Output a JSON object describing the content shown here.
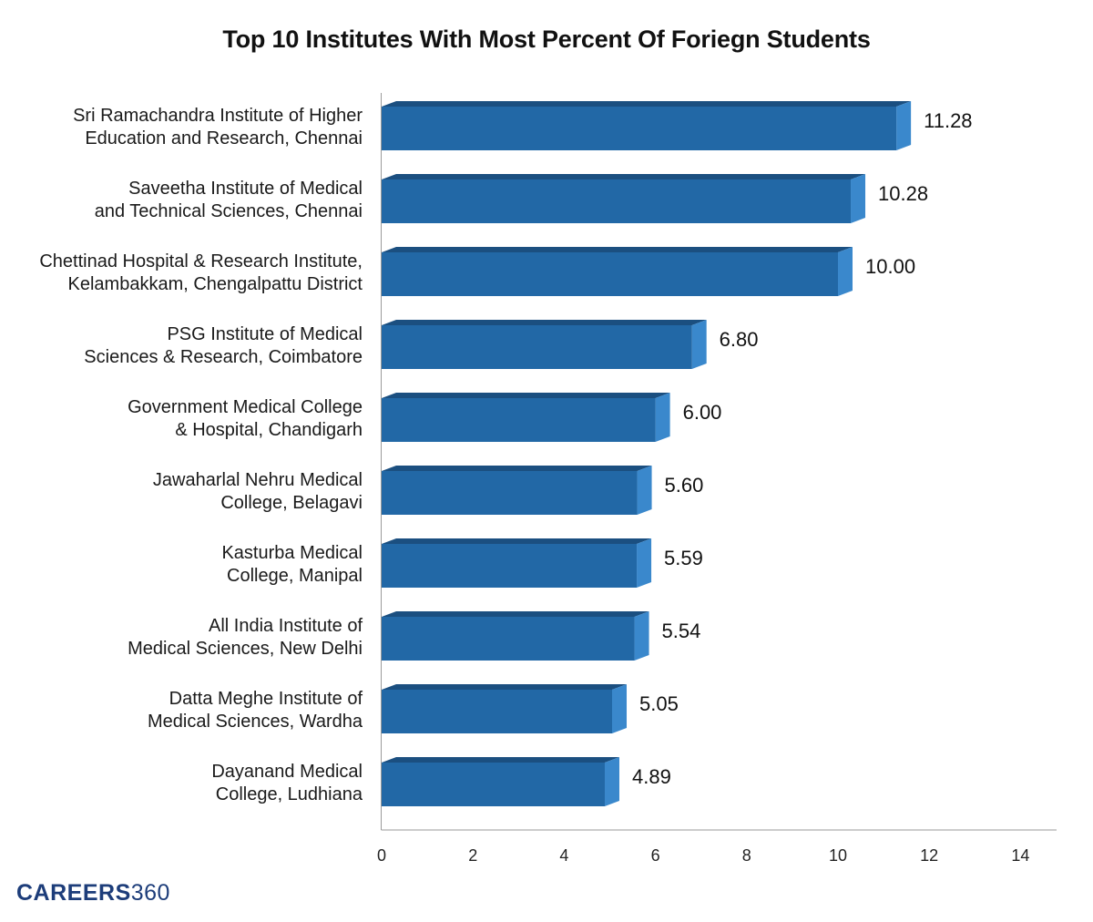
{
  "chart_data": {
    "type": "bar",
    "orientation": "horizontal",
    "title": "Top 10 Institutes With Most Percent Of Foriegn Students",
    "xlabel": "",
    "ylabel": "",
    "xlim": [
      0,
      14
    ],
    "x_ticks": [
      "0",
      "2",
      "4",
      "6",
      "8",
      "10",
      "12",
      "14"
    ],
    "grid": false,
    "bar_color": "#2268a6",
    "bar_top_color": "#1b4f80",
    "bar_side_color": "#3a88cc",
    "categories": [
      [
        "Sri Ramachandra Institute of Higher",
        "Education and Research, Chennai"
      ],
      [
        "Saveetha Institute of Medical",
        "and Technical Sciences, Chennai"
      ],
      [
        "Chettinad Hospital & Research Institute,",
        "Kelambakkam, Chengalpattu District"
      ],
      [
        "PSG Institute of Medical",
        "Sciences & Research, Coimbatore"
      ],
      [
        "Government Medical College",
        "& Hospital, Chandigarh"
      ],
      [
        "Jawaharlal Nehru Medical",
        "College, Belagavi"
      ],
      [
        "Kasturba Medical",
        "College, Manipal"
      ],
      [
        "All India Institute of",
        "Medical Sciences, New Delhi"
      ],
      [
        "Datta Meghe Institute of",
        "Medical Sciences, Wardha"
      ],
      [
        "Dayanand Medical",
        "College, Ludhiana"
      ]
    ],
    "values": [
      11.28,
      10.28,
      10.0,
      6.8,
      6.0,
      5.6,
      5.59,
      5.54,
      5.05,
      4.89
    ],
    "value_labels": [
      "11.28",
      "10.28",
      "10.00",
      "6.80",
      "6.00",
      "5.60",
      "5.59",
      "5.54",
      "5.05",
      "4.89"
    ]
  },
  "brand": {
    "part1": "CAREERS",
    "part2": "360",
    "color": "#1d3d7a"
  }
}
